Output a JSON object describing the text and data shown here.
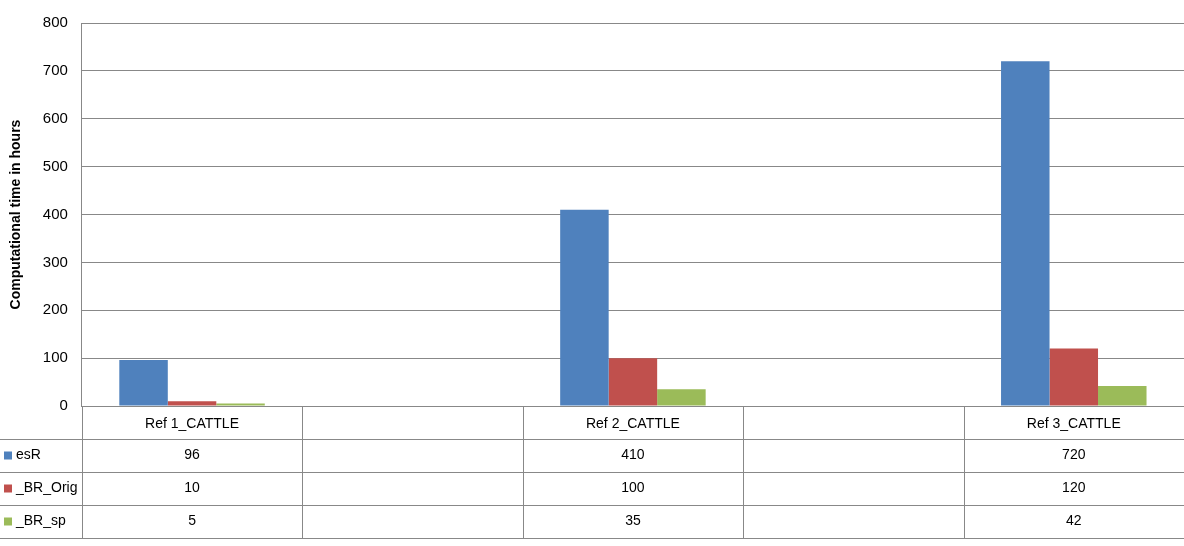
{
  "chart_data": {
    "type": "bar",
    "ylabel": "Computational time in hours",
    "categories": [
      "Ref 1_CATTLE",
      null,
      "Ref 2_CATTLE",
      null,
      "Ref 3_CATTLE"
    ],
    "series": [
      {
        "name": "esR",
        "color": "#4f81bd",
        "values": [
          96,
          null,
          410,
          null,
          720
        ]
      },
      {
        "name": "_BR_Orig",
        "color": "#c0504d",
        "values": [
          10,
          null,
          100,
          null,
          120
        ]
      },
      {
        "name": "_BR_sp",
        "color": "#9bbb59",
        "values": [
          5,
          null,
          35,
          null,
          42
        ]
      }
    ],
    "ylim": [
      0,
      800
    ],
    "yticks": [
      0,
      100,
      200,
      300,
      400,
      500,
      600,
      700,
      800
    ],
    "grid": "y",
    "legend": "bottom left",
    "data_labels": true
  }
}
